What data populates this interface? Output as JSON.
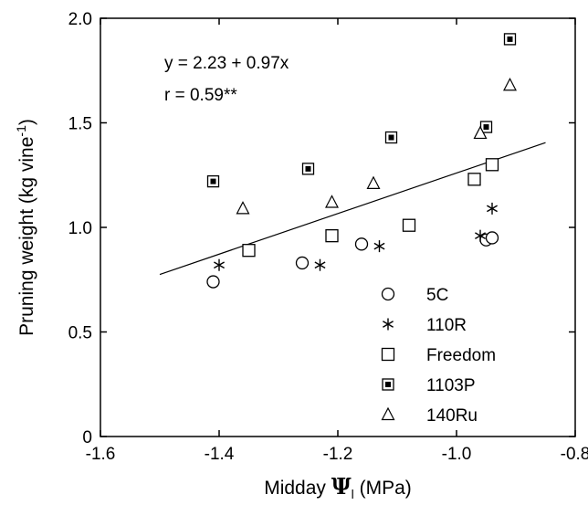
{
  "chart_data": {
    "type": "scatter",
    "xlim": [
      -1.6,
      -0.8
    ],
    "ylim": [
      0,
      2.0
    ],
    "x_ticks": [
      "-1.6",
      "-1.4",
      "-1.2",
      "-1.0",
      "-0.8"
    ],
    "y_ticks": [
      "0",
      "0.5",
      "1.0",
      "1.5",
      "2.0"
    ],
    "xlabel": {
      "prefix": "Midday ",
      "symbol": "Ψ",
      "subscript": "l",
      "suffix": " (MPa)"
    },
    "ylabel": {
      "main": "Pruning weight (kg vine",
      "sup": "-1",
      "close": ")"
    },
    "annotations": [
      "y = 2.23 + 0.97x",
      "r = 0.59**"
    ],
    "regression": {
      "intercept": 2.23,
      "slope": 0.97,
      "x_range": [
        -1.5,
        -0.85
      ]
    },
    "grid": false,
    "legend_position": "bottom-right",
    "series": [
      {
        "name": "5C",
        "marker": "circle",
        "points": [
          [
            -1.41,
            0.74
          ],
          [
            -1.26,
            0.83
          ],
          [
            -1.16,
            0.92
          ],
          [
            -0.95,
            0.94
          ],
          [
            -0.94,
            0.95
          ]
        ]
      },
      {
        "name": "110R",
        "marker": "asterisk",
        "points": [
          [
            -1.4,
            0.82
          ],
          [
            -1.23,
            0.82
          ],
          [
            -1.13,
            0.91
          ],
          [
            -0.96,
            0.96
          ],
          [
            -0.94,
            1.09
          ]
        ]
      },
      {
        "name": "Freedom",
        "marker": "square",
        "points": [
          [
            -1.35,
            0.89
          ],
          [
            -1.21,
            0.96
          ],
          [
            -1.08,
            1.01
          ],
          [
            -0.97,
            1.23
          ],
          [
            -0.94,
            1.3
          ]
        ]
      },
      {
        "name": "1103P",
        "marker": "square-dot",
        "points": [
          [
            -1.41,
            1.22
          ],
          [
            -1.25,
            1.28
          ],
          [
            -1.11,
            1.43
          ],
          [
            -0.95,
            1.48
          ],
          [
            -0.91,
            1.9
          ]
        ]
      },
      {
        "name": "140Ru",
        "marker": "triangle",
        "points": [
          [
            -1.36,
            1.09
          ],
          [
            -1.21,
            1.12
          ],
          [
            -1.14,
            1.21
          ],
          [
            -0.96,
            1.45
          ],
          [
            -0.91,
            1.68
          ]
        ]
      }
    ]
  }
}
